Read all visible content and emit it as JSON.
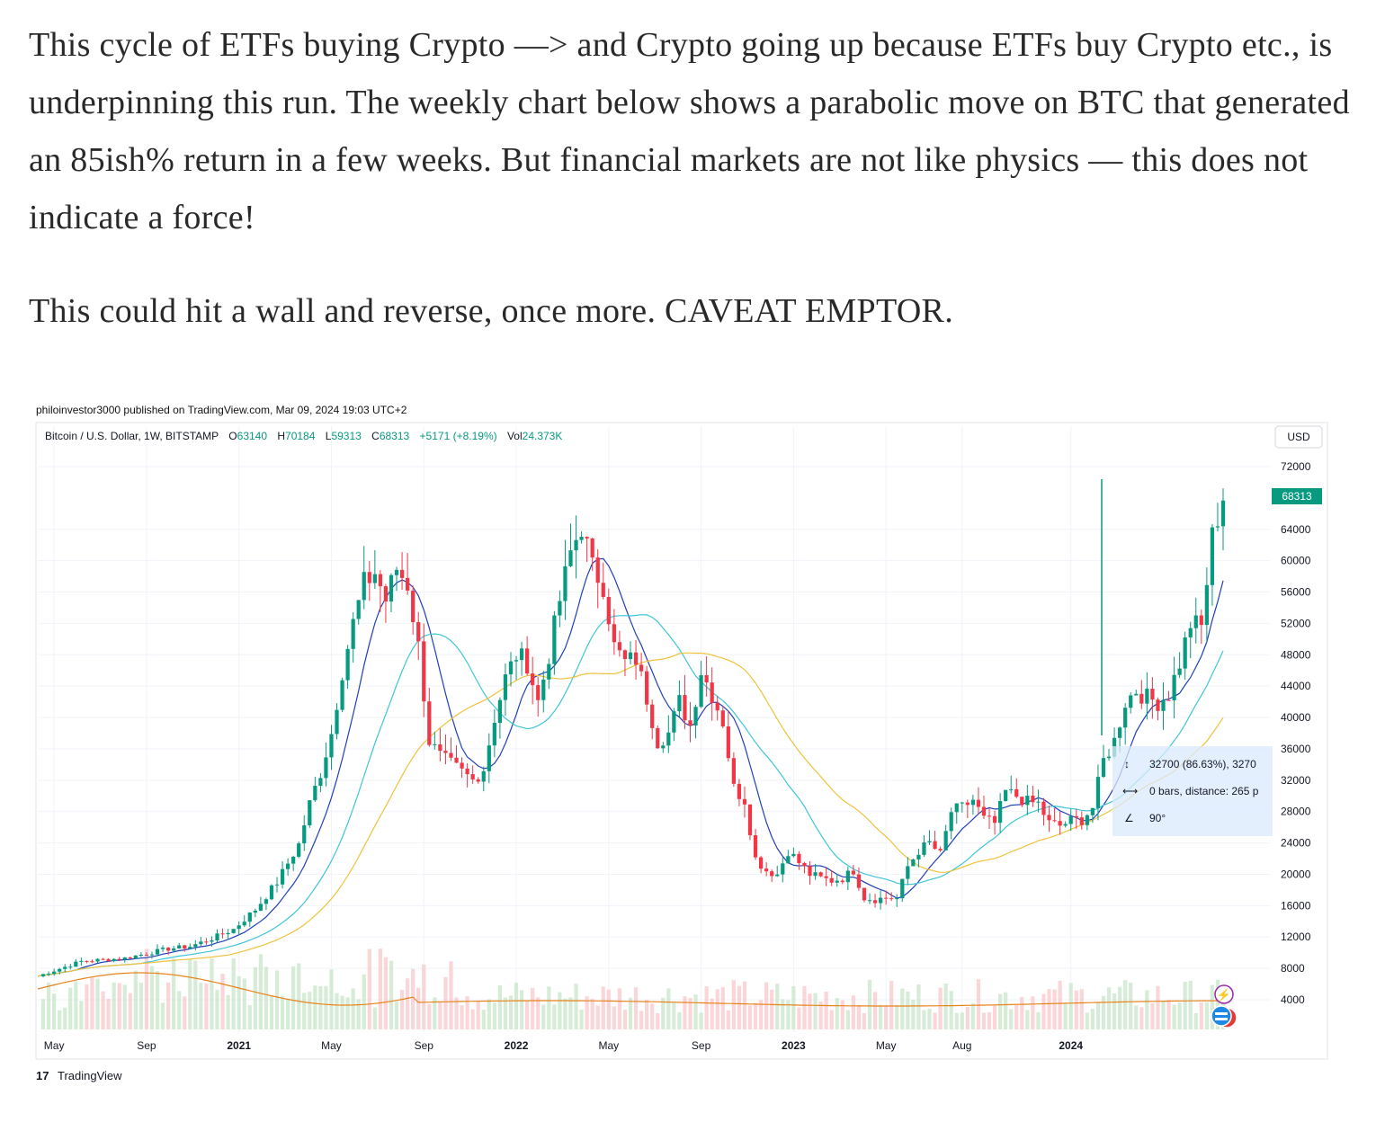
{
  "article": {
    "paragraphs": [
      "This cycle of ETFs buying Crypto —> and Crypto going up because ETFs buy Crypto etc., is underpinning this run. The weekly chart below shows a parabolic move on BTC that generated an 85ish% return in a few weeks. But financial markets are not like physics — this does not indicate a force!",
      "This could hit a wall and reverse, once more. CAVEAT EMPTOR."
    ]
  },
  "chart_data": {
    "type": "candlestick",
    "published": "philoinvestor3000 published on TradingView.com, Mar 09, 2024 19:03 UTC+2",
    "symbol": "Bitcoin / U.S. Dollar, 1W, BITSTAMP",
    "ohlc": {
      "o_label": "O",
      "o": "63140",
      "h_label": "H",
      "h": "70184",
      "l_label": "L",
      "l": "59313",
      "c_label": "C",
      "c": "68313",
      "change": "+5171 (+8.19%)",
      "vol_label": "Vol",
      "vol": "24.373K"
    },
    "currency": "USD",
    "last_price": "68313",
    "y_ticks": [
      "72000",
      "64000",
      "60000",
      "56000",
      "52000",
      "48000",
      "44000",
      "40000",
      "36000",
      "32000",
      "28000",
      "24000",
      "20000",
      "16000",
      "12000",
      "8000",
      "4000"
    ],
    "ylim": [
      0,
      74000
    ],
    "x_ticks": [
      {
        "label": "May",
        "bold": false
      },
      {
        "label": "Sep",
        "bold": false
      },
      {
        "label": "2021",
        "bold": true
      },
      {
        "label": "May",
        "bold": false
      },
      {
        "label": "Sep",
        "bold": false
      },
      {
        "label": "2022",
        "bold": true
      },
      {
        "label": "May",
        "bold": false
      },
      {
        "label": "Sep",
        "bold": false
      },
      {
        "label": "2023",
        "bold": true
      },
      {
        "label": "May",
        "bold": false
      },
      {
        "label": "Aug",
        "bold": false
      },
      {
        "label": "2024",
        "bold": true
      }
    ],
    "price_path_weekly_close": [
      [
        0,
        7000
      ],
      [
        8,
        8900
      ],
      [
        16,
        9300
      ],
      [
        24,
        10500
      ],
      [
        28,
        10800
      ],
      [
        32,
        11800
      ],
      [
        36,
        13000
      ],
      [
        40,
        15500
      ],
      [
        44,
        19000
      ],
      [
        48,
        23800
      ],
      [
        50,
        29000
      ],
      [
        52,
        33000
      ],
      [
        54,
        38000
      ],
      [
        56,
        46000
      ],
      [
        58,
        52000
      ],
      [
        60,
        57000
      ],
      [
        62,
        58500
      ],
      [
        64,
        55000
      ],
      [
        66,
        59000
      ],
      [
        68,
        57000
      ],
      [
        70,
        49000
      ],
      [
        72,
        37000
      ],
      [
        74,
        35000
      ],
      [
        76,
        34000
      ],
      [
        78,
        33000
      ],
      [
        80,
        32000
      ],
      [
        82,
        33500
      ],
      [
        84,
        40000
      ],
      [
        86,
        45000
      ],
      [
        88,
        48000
      ],
      [
        90,
        47000
      ],
      [
        92,
        42000
      ],
      [
        94,
        48000
      ],
      [
        96,
        55000
      ],
      [
        98,
        61000
      ],
      [
        100,
        64500
      ],
      [
        102,
        59000
      ],
      [
        104,
        57000
      ],
      [
        106,
        49000
      ],
      [
        108,
        47000
      ],
      [
        110,
        47500
      ],
      [
        112,
        42500
      ],
      [
        114,
        37000
      ],
      [
        116,
        38000
      ],
      [
        118,
        42000
      ],
      [
        120,
        39000
      ],
      [
        122,
        46000
      ],
      [
        124,
        43000
      ],
      [
        126,
        39500
      ],
      [
        128,
        31000
      ],
      [
        130,
        29500
      ],
      [
        132,
        22000
      ],
      [
        134,
        20500
      ],
      [
        136,
        20000
      ],
      [
        138,
        23000
      ],
      [
        140,
        21500
      ],
      [
        142,
        20000
      ],
      [
        144,
        19500
      ],
      [
        146,
        19200
      ],
      [
        148,
        19500
      ],
      [
        150,
        20500
      ],
      [
        152,
        17000
      ],
      [
        154,
        16800
      ],
      [
        156,
        17000
      ],
      [
        158,
        16900
      ],
      [
        160,
        21000
      ],
      [
        162,
        23000
      ],
      [
        164,
        24000
      ],
      [
        166,
        22500
      ],
      [
        168,
        28000
      ],
      [
        170,
        28500
      ],
      [
        172,
        29500
      ],
      [
        174,
        27000
      ],
      [
        176,
        26500
      ],
      [
        178,
        30500
      ],
      [
        180,
        30000
      ],
      [
        182,
        29200
      ],
      [
        184,
        29000
      ],
      [
        186,
        26500
      ],
      [
        188,
        26200
      ],
      [
        190,
        26800
      ],
      [
        192,
        27000
      ],
      [
        194,
        28500
      ],
      [
        196,
        34500
      ],
      [
        198,
        37000
      ],
      [
        200,
        42000
      ],
      [
        202,
        43500
      ],
      [
        204,
        42500
      ],
      [
        206,
        42000
      ],
      [
        208,
        43000
      ],
      [
        210,
        47000
      ],
      [
        212,
        52000
      ],
      [
        214,
        51500
      ],
      [
        216,
        63000
      ],
      [
        218,
        68313
      ]
    ],
    "series": [
      {
        "name": "",
        "color": "#1e3fb8"
      },
      {
        "name": "",
        "color": "#3fc6d8"
      },
      {
        "name": "",
        "color": "#f0c23c"
      }
    ],
    "measure_tool": {
      "line1": "32700 (86.63%), 3270",
      "line2": "0 bars, distance: 265 p",
      "line3": "90°"
    },
    "footer_brand": "TradingView"
  }
}
